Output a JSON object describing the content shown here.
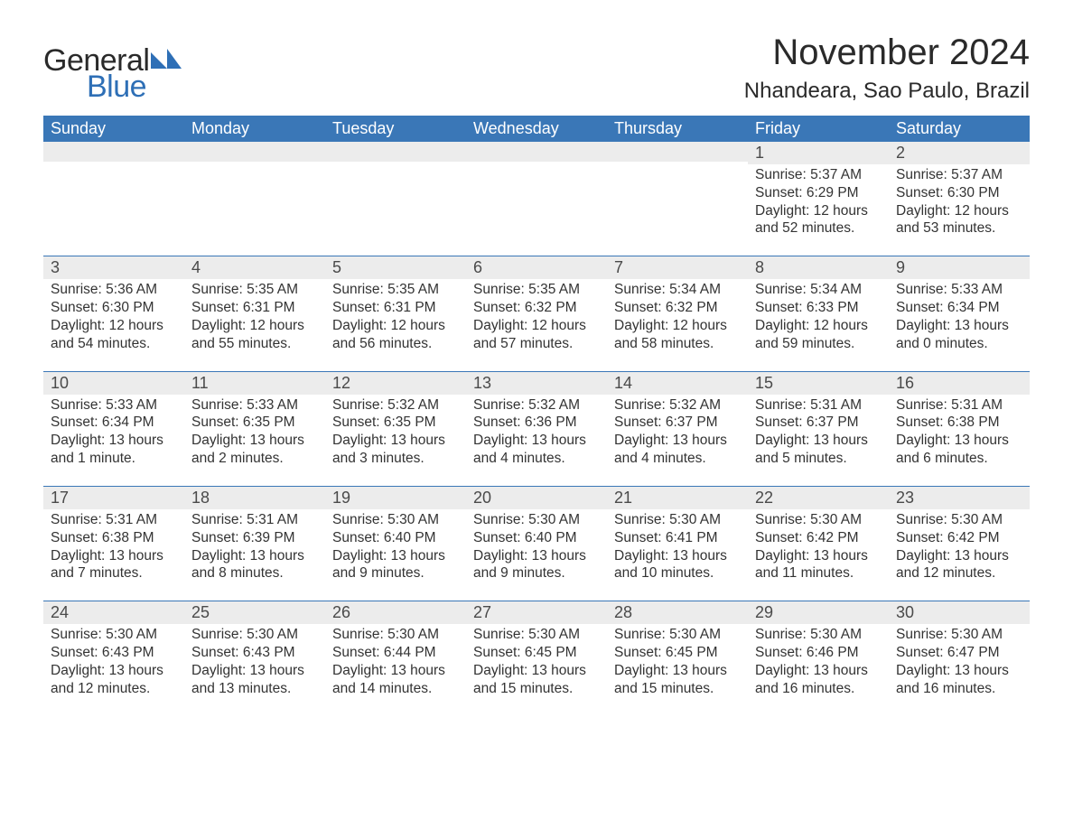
{
  "brand": {
    "word1": "General",
    "word2": "Blue",
    "accent_color": "#2e6fb6"
  },
  "title": "November 2024",
  "location": "Nhandeara, Sao Paulo, Brazil",
  "colors": {
    "header_bg": "#3a77b7",
    "header_text": "#ffffff",
    "daynum_bg": "#ececec",
    "rule": "#3a77b7",
    "body_text": "#333333",
    "page_bg": "#ffffff"
  },
  "columns": [
    "Sunday",
    "Monday",
    "Tuesday",
    "Wednesday",
    "Thursday",
    "Friday",
    "Saturday"
  ],
  "field_labels": {
    "sunrise": "Sunrise",
    "sunset": "Sunset",
    "daylight": "Daylight"
  },
  "weeks": [
    [
      null,
      null,
      null,
      null,
      null,
      {
        "n": 1,
        "sunrise": "5:37 AM",
        "sunset": "6:29 PM",
        "daylight": "12 hours and 52 minutes."
      },
      {
        "n": 2,
        "sunrise": "5:37 AM",
        "sunset": "6:30 PM",
        "daylight": "12 hours and 53 minutes."
      }
    ],
    [
      {
        "n": 3,
        "sunrise": "5:36 AM",
        "sunset": "6:30 PM",
        "daylight": "12 hours and 54 minutes."
      },
      {
        "n": 4,
        "sunrise": "5:35 AM",
        "sunset": "6:31 PM",
        "daylight": "12 hours and 55 minutes."
      },
      {
        "n": 5,
        "sunrise": "5:35 AM",
        "sunset": "6:31 PM",
        "daylight": "12 hours and 56 minutes."
      },
      {
        "n": 6,
        "sunrise": "5:35 AM",
        "sunset": "6:32 PM",
        "daylight": "12 hours and 57 minutes."
      },
      {
        "n": 7,
        "sunrise": "5:34 AM",
        "sunset": "6:32 PM",
        "daylight": "12 hours and 58 minutes."
      },
      {
        "n": 8,
        "sunrise": "5:34 AM",
        "sunset": "6:33 PM",
        "daylight": "12 hours and 59 minutes."
      },
      {
        "n": 9,
        "sunrise": "5:33 AM",
        "sunset": "6:34 PM",
        "daylight": "13 hours and 0 minutes."
      }
    ],
    [
      {
        "n": 10,
        "sunrise": "5:33 AM",
        "sunset": "6:34 PM",
        "daylight": "13 hours and 1 minute."
      },
      {
        "n": 11,
        "sunrise": "5:33 AM",
        "sunset": "6:35 PM",
        "daylight": "13 hours and 2 minutes."
      },
      {
        "n": 12,
        "sunrise": "5:32 AM",
        "sunset": "6:35 PM",
        "daylight": "13 hours and 3 minutes."
      },
      {
        "n": 13,
        "sunrise": "5:32 AM",
        "sunset": "6:36 PM",
        "daylight": "13 hours and 4 minutes."
      },
      {
        "n": 14,
        "sunrise": "5:32 AM",
        "sunset": "6:37 PM",
        "daylight": "13 hours and 4 minutes."
      },
      {
        "n": 15,
        "sunrise": "5:31 AM",
        "sunset": "6:37 PM",
        "daylight": "13 hours and 5 minutes."
      },
      {
        "n": 16,
        "sunrise": "5:31 AM",
        "sunset": "6:38 PM",
        "daylight": "13 hours and 6 minutes."
      }
    ],
    [
      {
        "n": 17,
        "sunrise": "5:31 AM",
        "sunset": "6:38 PM",
        "daylight": "13 hours and 7 minutes."
      },
      {
        "n": 18,
        "sunrise": "5:31 AM",
        "sunset": "6:39 PM",
        "daylight": "13 hours and 8 minutes."
      },
      {
        "n": 19,
        "sunrise": "5:30 AM",
        "sunset": "6:40 PM",
        "daylight": "13 hours and 9 minutes."
      },
      {
        "n": 20,
        "sunrise": "5:30 AM",
        "sunset": "6:40 PM",
        "daylight": "13 hours and 9 minutes."
      },
      {
        "n": 21,
        "sunrise": "5:30 AM",
        "sunset": "6:41 PM",
        "daylight": "13 hours and 10 minutes."
      },
      {
        "n": 22,
        "sunrise": "5:30 AM",
        "sunset": "6:42 PM",
        "daylight": "13 hours and 11 minutes."
      },
      {
        "n": 23,
        "sunrise": "5:30 AM",
        "sunset": "6:42 PM",
        "daylight": "13 hours and 12 minutes."
      }
    ],
    [
      {
        "n": 24,
        "sunrise": "5:30 AM",
        "sunset": "6:43 PM",
        "daylight": "13 hours and 12 minutes."
      },
      {
        "n": 25,
        "sunrise": "5:30 AM",
        "sunset": "6:43 PM",
        "daylight": "13 hours and 13 minutes."
      },
      {
        "n": 26,
        "sunrise": "5:30 AM",
        "sunset": "6:44 PM",
        "daylight": "13 hours and 14 minutes."
      },
      {
        "n": 27,
        "sunrise": "5:30 AM",
        "sunset": "6:45 PM",
        "daylight": "13 hours and 15 minutes."
      },
      {
        "n": 28,
        "sunrise": "5:30 AM",
        "sunset": "6:45 PM",
        "daylight": "13 hours and 15 minutes."
      },
      {
        "n": 29,
        "sunrise": "5:30 AM",
        "sunset": "6:46 PM",
        "daylight": "13 hours and 16 minutes."
      },
      {
        "n": 30,
        "sunrise": "5:30 AM",
        "sunset": "6:47 PM",
        "daylight": "13 hours and 16 minutes."
      }
    ]
  ]
}
